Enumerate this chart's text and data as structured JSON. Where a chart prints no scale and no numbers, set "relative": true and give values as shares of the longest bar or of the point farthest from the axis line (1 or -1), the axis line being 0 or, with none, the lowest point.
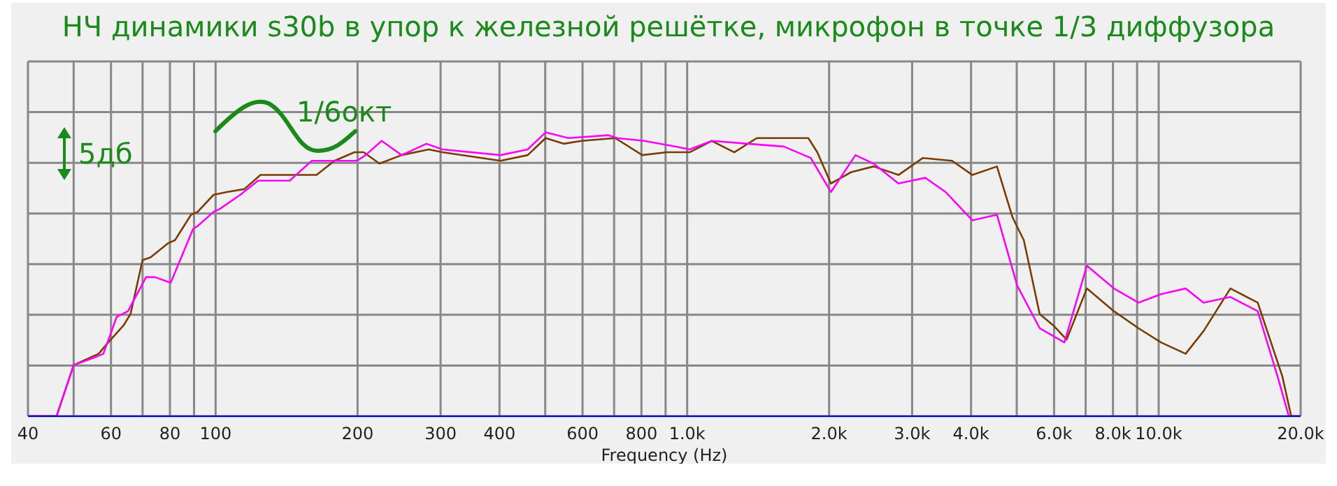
{
  "chart_data": {
    "type": "line",
    "title": "НЧ динамики s30b в упор к железной решётке, микрофон в точке 1/3 диффузора",
    "xlabel": "Frequency (Hz)",
    "relative": true,
    "log": "x",
    "grid": true,
    "marker": "none",
    "line_style": "solid",
    "xlim": [
      40,
      20000
    ],
    "xticks": [
      40,
      60,
      80,
      100,
      200,
      300,
      400,
      600,
      800,
      {
        "value": 1000,
        "label": "1.0k"
      },
      {
        "value": 2000,
        "label": "2.0k"
      },
      {
        "value": 3000,
        "label": "3.0k"
      },
      {
        "value": 4000,
        "label": "4.0k"
      },
      {
        "value": 6000,
        "label": "6.0k"
      },
      {
        "value": 8000,
        "label": "8.0k"
      },
      {
        "value": 10000,
        "label": "10.0k"
      },
      {
        "value": 20000,
        "label": "20.0k"
      },
      {
        "value": 50,
        "label": null
      },
      {
        "value": 70,
        "label": null
      },
      {
        "value": 90,
        "label": null
      },
      {
        "value": 500,
        "label": null
      },
      {
        "value": 700,
        "label": null
      },
      {
        "value": 900,
        "label": null
      },
      {
        "value": 5000,
        "label": null
      },
      {
        "value": 7000,
        "label": null
      },
      {
        "value": 9000,
        "label": null
      }
    ],
    "annotations": [
      "5дб",
      "1/6окт"
    ],
    "series": [
      {
        "color": "#7a3c00",
        "x": [
          40,
          46,
          50,
          56.5,
          58.5,
          63.8,
          66,
          70,
          72.8,
          79.4,
          82,
          88.7,
          91.6,
          99,
          105.6,
          115,
          124.5,
          133,
          163.7,
          178.7,
          197,
          206,
          222.6,
          248,
          283,
          302.7,
          402,
          459,
          501,
          547,
          597,
          704,
          803,
          906,
          1012,
          1128,
          1259,
          1405,
          1603,
          1807,
          1888,
          2018,
          2228,
          2485,
          2806,
          3162,
          3646,
          4027,
          4539,
          4900,
          5176,
          5593,
          5976,
          6379,
          7041,
          8035,
          9059,
          10114,
          11407,
          12450,
          14193,
          16218,
          18293,
          19100,
          20000
        ],
        "values": [
          0,
          0,
          0.18,
          0.22,
          0.25,
          0.32,
          0.36,
          0.55,
          0.56,
          0.61,
          0.62,
          0.71,
          0.72,
          0.78,
          0.79,
          0.8,
          0.85,
          0.85,
          0.85,
          0.9,
          0.93,
          0.93,
          0.89,
          0.92,
          0.94,
          0.93,
          0.9,
          0.92,
          0.98,
          0.96,
          0.97,
          0.98,
          0.92,
          0.93,
          0.93,
          0.97,
          0.93,
          0.98,
          0.98,
          0.98,
          0.93,
          0.82,
          0.86,
          0.88,
          0.85,
          0.91,
          0.9,
          0.85,
          0.88,
          0.7,
          0.62,
          0.36,
          0.32,
          0.27,
          0.45,
          0.37,
          0.31,
          0.26,
          0.22,
          0.3,
          0.45,
          0.4,
          0.14,
          0,
          0
        ]
      },
      {
        "color": "#ff00ff",
        "x": [
          40,
          46,
          50,
          56,
          57.8,
          61.7,
          65.2,
          71.2,
          74.4,
          80.3,
          89.6,
          91.6,
          99,
          102,
          112.8,
          123,
          143.6,
          160,
          178.7,
          199.5,
          208,
          225,
          248,
          280,
          302.7,
          402,
          459,
          501,
          560,
          681,
          711,
          811,
          947,
          1012,
          1128,
          1345,
          1603,
          1828,
          2018,
          2275,
          2485,
          2806,
          3199,
          3532,
          4027,
          4539,
          5012,
          5593,
          6310,
          7041,
          8035,
          9059,
          10114,
          11407,
          12450,
          14193,
          16218,
          17870,
          18880,
          20000
        ],
        "values": [
          0,
          0,
          0.18,
          0.21,
          0.22,
          0.35,
          0.37,
          0.49,
          0.49,
          0.47,
          0.66,
          0.67,
          0.72,
          0.73,
          0.78,
          0.83,
          0.83,
          0.9,
          0.9,
          0.9,
          0.92,
          0.97,
          0.92,
          0.96,
          0.94,
          0.92,
          0.94,
          1,
          0.98,
          0.99,
          0.98,
          0.97,
          0.95,
          0.94,
          0.97,
          0.96,
          0.95,
          0.91,
          0.79,
          0.92,
          0.89,
          0.82,
          0.84,
          0.79,
          0.69,
          0.71,
          0.46,
          0.31,
          0.26,
          0.53,
          0.45,
          0.4,
          0.43,
          0.45,
          0.4,
          0.42,
          0.37,
          0.14,
          0,
          0
        ]
      }
    ]
  }
}
